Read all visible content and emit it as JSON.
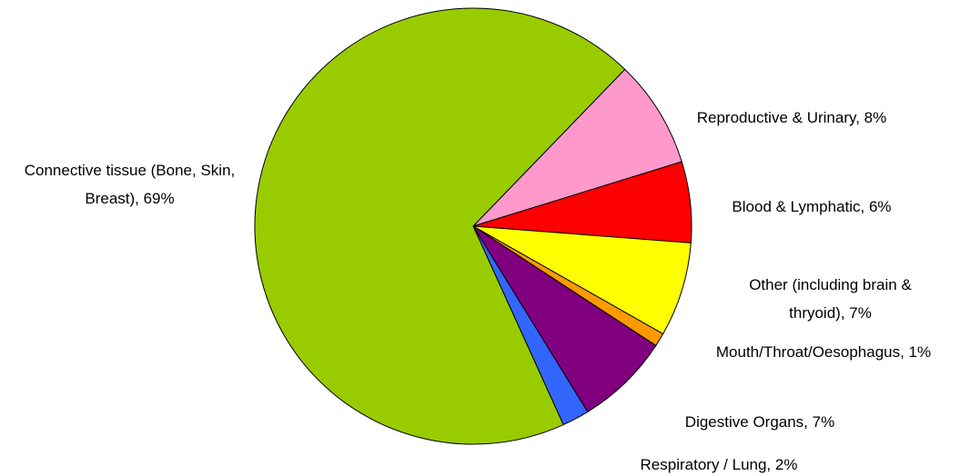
{
  "chart_data": {
    "type": "pie",
    "categories": [
      "Reproductive & Urinary, 8%",
      "Blood & Lymphatic, 6%",
      "Other (including brain & thryoid), 7%",
      "Mouth/Throat/Oesophagus, 1%",
      "Digestive Organs, 7%",
      "Respiratory / Lung, 2%",
      "Connective tissue (Bone, Skin, Breast), 69%"
    ],
    "values": [
      8,
      6,
      7,
      1,
      7,
      2,
      69
    ],
    "colors": [
      "#ff99cc",
      "#ff0000",
      "#ffff00",
      "#ff9900",
      "#800080",
      "#3366ff",
      "#99cc00"
    ]
  }
}
